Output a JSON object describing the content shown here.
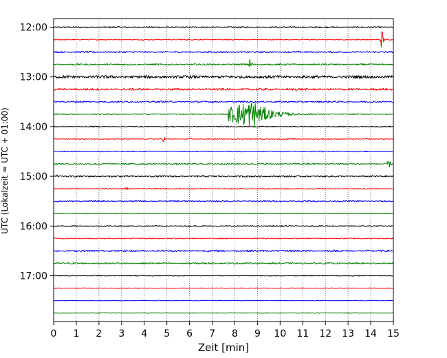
{
  "chart_data": {
    "type": "line",
    "subtype": "helicorder",
    "xlabel": "Zeit  [min]",
    "ylabel": "UTC (Lokalzeit = UTC + 01:00)",
    "xlim": [
      0,
      15
    ],
    "x_ticks": [
      "0",
      "1",
      "2",
      "3",
      "4",
      "5",
      "6",
      "7",
      "8",
      "9",
      "10",
      "11",
      "12",
      "13",
      "14",
      "15"
    ],
    "y_tick_labels": [
      "12:00",
      "13:00",
      "14:00",
      "15:00",
      "16:00",
      "17:00"
    ],
    "grid": "vertical dotted at each minute",
    "start_time": "12:00",
    "row_minutes": 15,
    "trace_colors": [
      "#000000",
      "#ff0000",
      "#0000ff",
      "#008000"
    ],
    "rows": [
      {
        "start": "12:00",
        "color": "#000000",
        "amplitude": 0.25
      },
      {
        "start": "12:15",
        "color": "#ff0000",
        "amplitude": 0.2,
        "spikes": [
          {
            "min": 14.5,
            "amp": 4.5
          }
        ]
      },
      {
        "start": "12:30",
        "color": "#0000ff",
        "amplitude": 0.3
      },
      {
        "start": "12:45",
        "color": "#008000",
        "amplitude": 0.3,
        "spikes": [
          {
            "min": 8.7,
            "amp": 3.5
          }
        ]
      },
      {
        "start": "13:00",
        "color": "#000000",
        "amplitude": 0.55
      },
      {
        "start": "13:15",
        "color": "#ff0000",
        "amplitude": 0.4
      },
      {
        "start": "13:30",
        "color": "#0000ff",
        "amplitude": 0.3
      },
      {
        "start": "13:45",
        "color": "#008000",
        "amplitude": 0.2,
        "event": {
          "start_min": 7.7,
          "peak_min": 8.8,
          "end_min": 11.5,
          "amp": 6.5
        }
      },
      {
        "start": "14:00",
        "color": "#000000",
        "amplitude": 0.2
      },
      {
        "start": "14:15",
        "color": "#ff0000",
        "amplitude": 0.15,
        "spikes": [
          {
            "min": 4.85,
            "amp": 1.0
          }
        ]
      },
      {
        "start": "14:30",
        "color": "#0000ff",
        "amplitude": 0.2
      },
      {
        "start": "14:45",
        "color": "#008000",
        "amplitude": 0.3,
        "spikes": [
          {
            "min": 14.8,
            "amp": 1.5
          }
        ]
      },
      {
        "start": "15:00",
        "color": "#000000",
        "amplitude": 0.3,
        "spikes": [
          {
            "min": 0.2,
            "amp": 0.9
          }
        ]
      },
      {
        "start": "15:15",
        "color": "#ff0000",
        "amplitude": 0.2,
        "spikes": [
          {
            "min": 3.2,
            "amp": 1.0
          }
        ]
      },
      {
        "start": "15:30",
        "color": "#0000ff",
        "amplitude": 0.25
      },
      {
        "start": "15:45",
        "color": "#008000",
        "amplitude": 0.15
      },
      {
        "start": "16:00",
        "color": "#000000",
        "amplitude": 0.2
      },
      {
        "start": "16:15",
        "color": "#ff0000",
        "amplitude": 0.2
      },
      {
        "start": "16:30",
        "color": "#0000ff",
        "amplitude": 0.35
      },
      {
        "start": "16:45",
        "color": "#008000",
        "amplitude": 0.3
      },
      {
        "start": "17:00",
        "color": "#000000",
        "amplitude": 0.15
      },
      {
        "start": "17:15",
        "color": "#ff0000",
        "amplitude": 0.12
      },
      {
        "start": "17:30",
        "color": "#0000ff",
        "amplitude": 0.12
      },
      {
        "start": "17:45",
        "color": "#008000",
        "amplitude": 0.12
      }
    ]
  }
}
